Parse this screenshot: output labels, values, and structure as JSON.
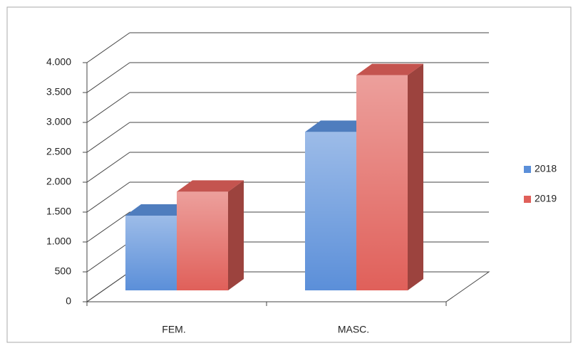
{
  "chart_data": {
    "type": "bar3d",
    "categories": [
      "FEM.",
      "MASC."
    ],
    "series": [
      {
        "name": "2018",
        "color": "#5b8fd9",
        "values": [
          1250,
          2650
        ]
      },
      {
        "name": "2019",
        "color": "#e0605a",
        "values": [
          1650,
          3600
        ]
      }
    ],
    "ylim": [
      0,
      4000
    ],
    "yticks": [
      0,
      500,
      {
        "value": 1000,
        "label": "1.000"
      },
      {
        "value": 1500,
        "label": "1.500"
      },
      {
        "value": 2000,
        "label": "2.000"
      },
      {
        "value": 2500,
        "label": "2.500"
      },
      {
        "value": 3000,
        "label": "3.000"
      },
      {
        "value": 3500,
        "label": "3.500"
      },
      {
        "value": 4000,
        "label": "4.000"
      }
    ],
    "grid": true,
    "legend": "right"
  }
}
